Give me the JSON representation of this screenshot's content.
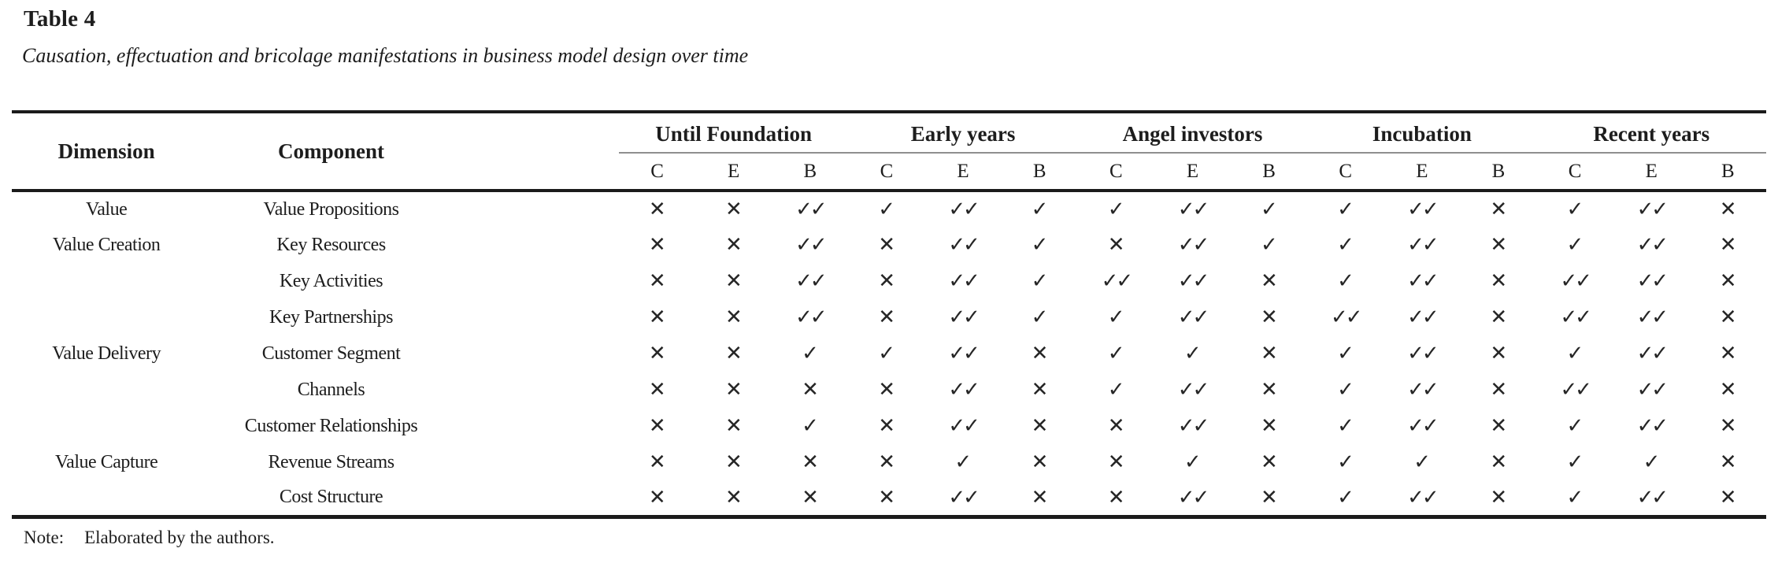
{
  "title": "Table 4",
  "caption": "Causation, effectuation and bricolage manifestations in business model design over time",
  "table": {
    "dimension_header": "Dimension",
    "component_header": "Component",
    "groups": [
      "Until Foundation",
      "Early years",
      "Angel investors",
      "Incubation",
      "Recent years"
    ],
    "subcolumns": [
      "C",
      "E",
      "B"
    ],
    "rows": [
      {
        "dimension": "Value",
        "component": "Value Propositions",
        "cells": [
          "✕",
          "✕",
          "✓✓",
          "✓",
          "✓✓",
          "✓",
          "✓",
          "✓✓",
          "✓",
          "✓",
          "✓✓",
          "✕",
          "✓",
          "✓✓",
          "✕"
        ]
      },
      {
        "dimension": "Value Creation",
        "component": "Key Resources",
        "cells": [
          "✕",
          "✕",
          "✓✓",
          "✕",
          "✓✓",
          "✓",
          "✕",
          "✓✓",
          "✓",
          "✓",
          "✓✓",
          "✕",
          "✓",
          "✓✓",
          "✕"
        ]
      },
      {
        "dimension": "",
        "component": "Key Activities",
        "cells": [
          "✕",
          "✕",
          "✓✓",
          "✕",
          "✓✓",
          "✓",
          "✓✓",
          "✓✓",
          "✕",
          "✓",
          "✓✓",
          "✕",
          "✓✓",
          "✓✓",
          "✕"
        ]
      },
      {
        "dimension": "",
        "component": "Key Partnerships",
        "cells": [
          "✕",
          "✕",
          "✓✓",
          "✕",
          "✓✓",
          "✓",
          "✓",
          "✓✓",
          "✕",
          "✓✓",
          "✓✓",
          "✕",
          "✓✓",
          "✓✓",
          "✕"
        ]
      },
      {
        "dimension": "Value Delivery",
        "component": "Customer Segment",
        "cells": [
          "✕",
          "✕",
          "✓",
          "✓",
          "✓✓",
          "✕",
          "✓",
          "✓",
          "✕",
          "✓",
          "✓✓",
          "✕",
          "✓",
          "✓✓",
          "✕"
        ]
      },
      {
        "dimension": "",
        "component": "Channels",
        "cells": [
          "✕",
          "✕",
          "✕",
          "✕",
          "✓✓",
          "✕",
          "✓",
          "✓✓",
          "✕",
          "✓",
          "✓✓",
          "✕",
          "✓✓",
          "✓✓",
          "✕"
        ]
      },
      {
        "dimension": "",
        "component": "Customer Relationships",
        "cells": [
          "✕",
          "✕",
          "✓",
          "✕",
          "✓✓",
          "✕",
          "✕",
          "✓✓",
          "✕",
          "✓",
          "✓✓",
          "✕",
          "✓",
          "✓✓",
          "✕"
        ]
      },
      {
        "dimension": "Value Capture",
        "component": "Revenue Streams",
        "cells": [
          "✕",
          "✕",
          "✕",
          "✕",
          "✓",
          "✕",
          "✕",
          "✓",
          "✕",
          "✓",
          "✓",
          "✕",
          "✓",
          "✓",
          "✕"
        ]
      },
      {
        "dimension": "",
        "component": "Cost Structure",
        "cells": [
          "✕",
          "✕",
          "✕",
          "✕",
          "✓✓",
          "✕",
          "✕",
          "✓✓",
          "✕",
          "✓",
          "✓✓",
          "✕",
          "✓",
          "✓✓",
          "✕"
        ]
      }
    ]
  },
  "note": {
    "label": "Note:",
    "text": "Elaborated by the authors."
  }
}
